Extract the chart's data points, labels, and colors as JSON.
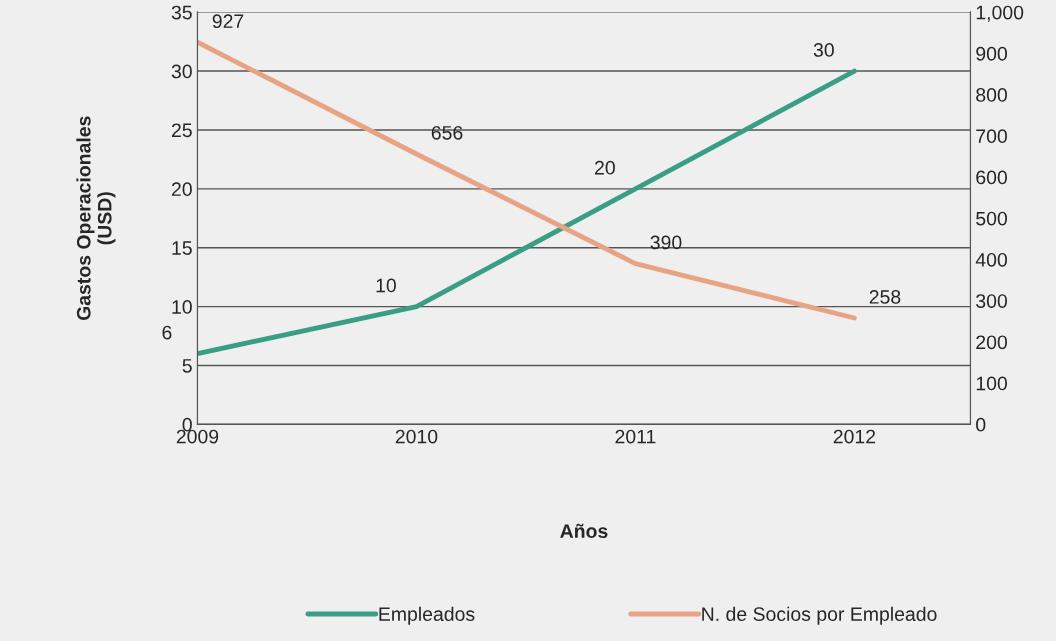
{
  "chart_data": {
    "type": "line",
    "xlabel": "Años",
    "ylabel": "Gastos Operacionales\n(USD)",
    "x": [
      2009,
      2010,
      2011,
      2012
    ],
    "xlim": [
      2009,
      2012.53
    ],
    "xticks": [
      2009,
      2010,
      2011,
      2012
    ],
    "ylim": [
      0,
      35
    ],
    "yticks": [
      0,
      5,
      10,
      15,
      20,
      25,
      30,
      35
    ],
    "y2lim": [
      0,
      1000
    ],
    "y2ticks": [
      0,
      100,
      200,
      300,
      400,
      500,
      600,
      700,
      800,
      900,
      {
        "value": 1000,
        "label": "1,000"
      }
    ],
    "series": [
      {
        "name": "Empleados",
        "color": "#3a9e84",
        "values": [
          6,
          10,
          20,
          30
        ]
      },
      {
        "name": "N. de Socios por Empleado",
        "color": "#e6a485",
        "values": [
          927,
          656,
          390,
          258
        ],
        "axis": "y2"
      }
    ],
    "data_labels": true,
    "grid": "y",
    "legend": "bottom",
    "marker": "none",
    "line_style": "solid"
  }
}
